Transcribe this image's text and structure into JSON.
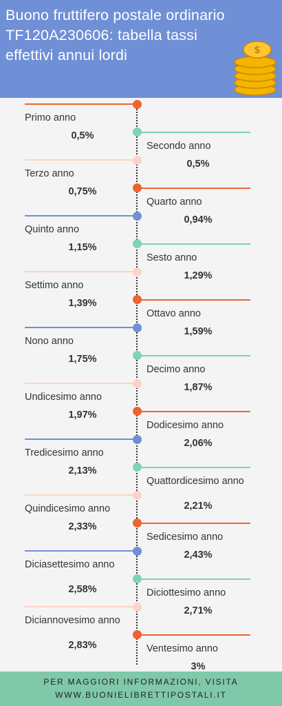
{
  "header": {
    "title": "Buono fruttifero postale ordinario TF120A230606: tabella tassi effettivi annui lordi",
    "coin_color": "#f4b400"
  },
  "colors": {
    "orange": "#f0622f",
    "green": "#7fd3b1",
    "pink": "#fbd3c7",
    "blue": "#6f8fd6",
    "header_bg": "#6f8fd6",
    "footer_bg": "#7fc8a9"
  },
  "entries": [
    {
      "year": "Primo anno",
      "rate": "0,5%",
      "color": "orange"
    },
    {
      "year": "Secondo anno",
      "rate": "0,5%",
      "color": "green"
    },
    {
      "year": "Terzo anno",
      "rate": "0,75%",
      "color": "pink"
    },
    {
      "year": "Quarto anno",
      "rate": "0,94%",
      "color": "orange"
    },
    {
      "year": "Quinto anno",
      "rate": "1,15%",
      "color": "blue"
    },
    {
      "year": "Sesto anno",
      "rate": "1,29%",
      "color": "green"
    },
    {
      "year": "Settimo anno",
      "rate": "1,39%",
      "color": "pink"
    },
    {
      "year": "Ottavo anno",
      "rate": "1,59%",
      "color": "orange"
    },
    {
      "year": "Nono anno",
      "rate": "1,75%",
      "color": "blue"
    },
    {
      "year": "Decimo anno",
      "rate": "1,87%",
      "color": "green"
    },
    {
      "year": "Undicesimo anno",
      "rate": "1,97%",
      "color": "pink"
    },
    {
      "year": "Dodicesimo anno",
      "rate": "2,06%",
      "color": "orange"
    },
    {
      "year": "Tredicesimo anno",
      "rate": "2,13%",
      "color": "blue"
    },
    {
      "year": "Quattordicesimo anno",
      "rate": "2,21%",
      "color": "green"
    },
    {
      "year": "Quindicesimo anno",
      "rate": "2,33%",
      "color": "pink"
    },
    {
      "year": "Sedicesimo anno",
      "rate": "2,43%",
      "color": "orange"
    },
    {
      "year": "Diciasettesimo anno",
      "rate": "2,58%",
      "color": "blue"
    },
    {
      "year": "Diciottesimo anno",
      "rate": "2,71%",
      "color": "green"
    },
    {
      "year": "Diciannovesimo anno",
      "rate": "2,83%",
      "color": "pink"
    },
    {
      "year": "Ventesimo anno",
      "rate": "3%",
      "color": "orange"
    }
  ],
  "footer": {
    "line1": "PER MAGGIORI INFORMAZIONI, VISITA",
    "line2": "WWW.BUONIELIBRETTIPOSTALI.IT"
  }
}
